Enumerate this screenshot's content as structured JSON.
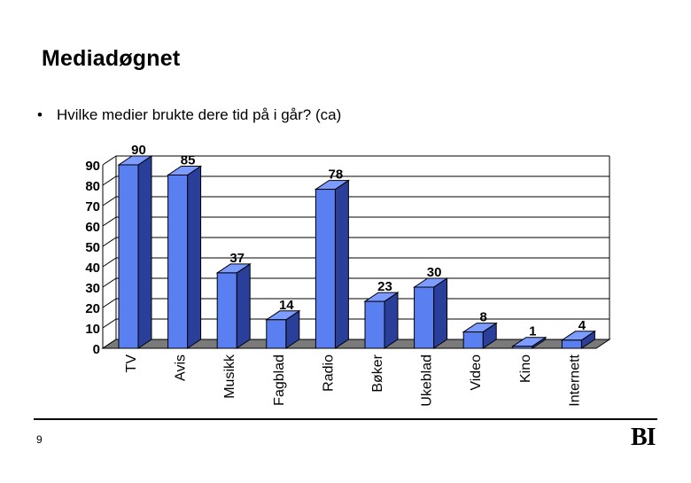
{
  "slide": {
    "title": "Mediadøgnet",
    "bullet_marker": "•",
    "bullet": "Hvilke medier brukte dere tid på i går? (ca)",
    "page_number": "9",
    "logo": "BI"
  },
  "colors": {
    "bar_front": "#5a7ff0",
    "bar_side": "#2a3f9a",
    "bar_top": "#7c9cff",
    "floor": "#7a7a7a",
    "gridline": "#000000"
  },
  "chart_data": {
    "type": "bar",
    "categories": [
      "TV",
      "Avis",
      "Musikk",
      "Fagblad",
      "Radio",
      "Bøker",
      "Ukeblad",
      "Video",
      "Kino",
      "Internett"
    ],
    "values": [
      90,
      85,
      37,
      14,
      78,
      23,
      30,
      8,
      1,
      4
    ],
    "ylim": [
      0,
      90
    ],
    "yticks": [
      0,
      10,
      20,
      30,
      40,
      50,
      60,
      70,
      80,
      90
    ],
    "grid": true,
    "three_d": true,
    "data_labels": true
  }
}
